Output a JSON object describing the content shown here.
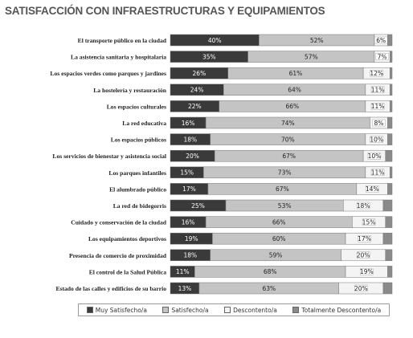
{
  "title": "SATISFACCIÓN CON INFRAESTRUCTURAS Y EQUIPAMIENTOS",
  "chart_data": {
    "type": "bar",
    "orientation": "horizontal",
    "stacked": true,
    "percent_stacked": true,
    "xlim": [
      0,
      100
    ],
    "categories": [
      "El transporte público en la ciudad",
      "La asistencia sanitaria y hospitalaria",
      "Los espacios verdes como parques y jardines",
      "La hostelería y restauración",
      "Los espacios culturales",
      "La red educativa",
      "Los espacios públicos",
      "Los servicios de bienestar y asistencia social",
      "Los parques infantiles",
      "El alumbrado público",
      "La red de bidegorris",
      "Cuidado y conservación de la ciudad",
      "Los equipamientos deportivos",
      "Presencia de comercio de proximidad",
      "El control de la Salud Pública",
      "Estado de las calles y edificios de su barrio"
    ],
    "series": [
      {
        "name": "Muy Satisfecho/a",
        "color": "#3a3a3a",
        "values": [
          40,
          35,
          26,
          24,
          22,
          16,
          18,
          20,
          15,
          17,
          25,
          16,
          19,
          18,
          11,
          13
        ],
        "labels": [
          "40%",
          "35%",
          "26%",
          "24%",
          "22%",
          "16%",
          "18%",
          "20%",
          "15%",
          "17%",
          "25%",
          "16%",
          "19%",
          "18%",
          "11%",
          "13%"
        ]
      },
      {
        "name": "Satisfecho/a",
        "color": "#c4c4c4",
        "values": [
          52,
          57,
          61,
          64,
          66,
          74,
          70,
          67,
          73,
          67,
          53,
          66,
          60,
          59,
          68,
          63
        ],
        "labels": [
          "52%",
          "57%",
          "61%",
          "64%",
          "66%",
          "74%",
          "70%",
          "67%",
          "73%",
          "67%",
          "53%",
          "66%",
          "60%",
          "59%",
          "68%",
          "63%"
        ]
      },
      {
        "name": "Descontento/a",
        "color": "#f4f4f4",
        "values": [
          6,
          7,
          12,
          11,
          11,
          8,
          10,
          10,
          11,
          14,
          18,
          15,
          17,
          20,
          19,
          20
        ],
        "labels": [
          "6%",
          "7%",
          "12%",
          "11%",
          "11%",
          "8%",
          "10%",
          "10%",
          "11%",
          "14%",
          "18%",
          "15%",
          "17%",
          "20%",
          "19%",
          "20%"
        ]
      },
      {
        "name": "Totalmente Descontento/a",
        "color": "#8a8a8a",
        "values": [
          2,
          1,
          1,
          1,
          1,
          2,
          2,
          3,
          1,
          2,
          4,
          3,
          4,
          3,
          2,
          4
        ]
      }
    ]
  }
}
